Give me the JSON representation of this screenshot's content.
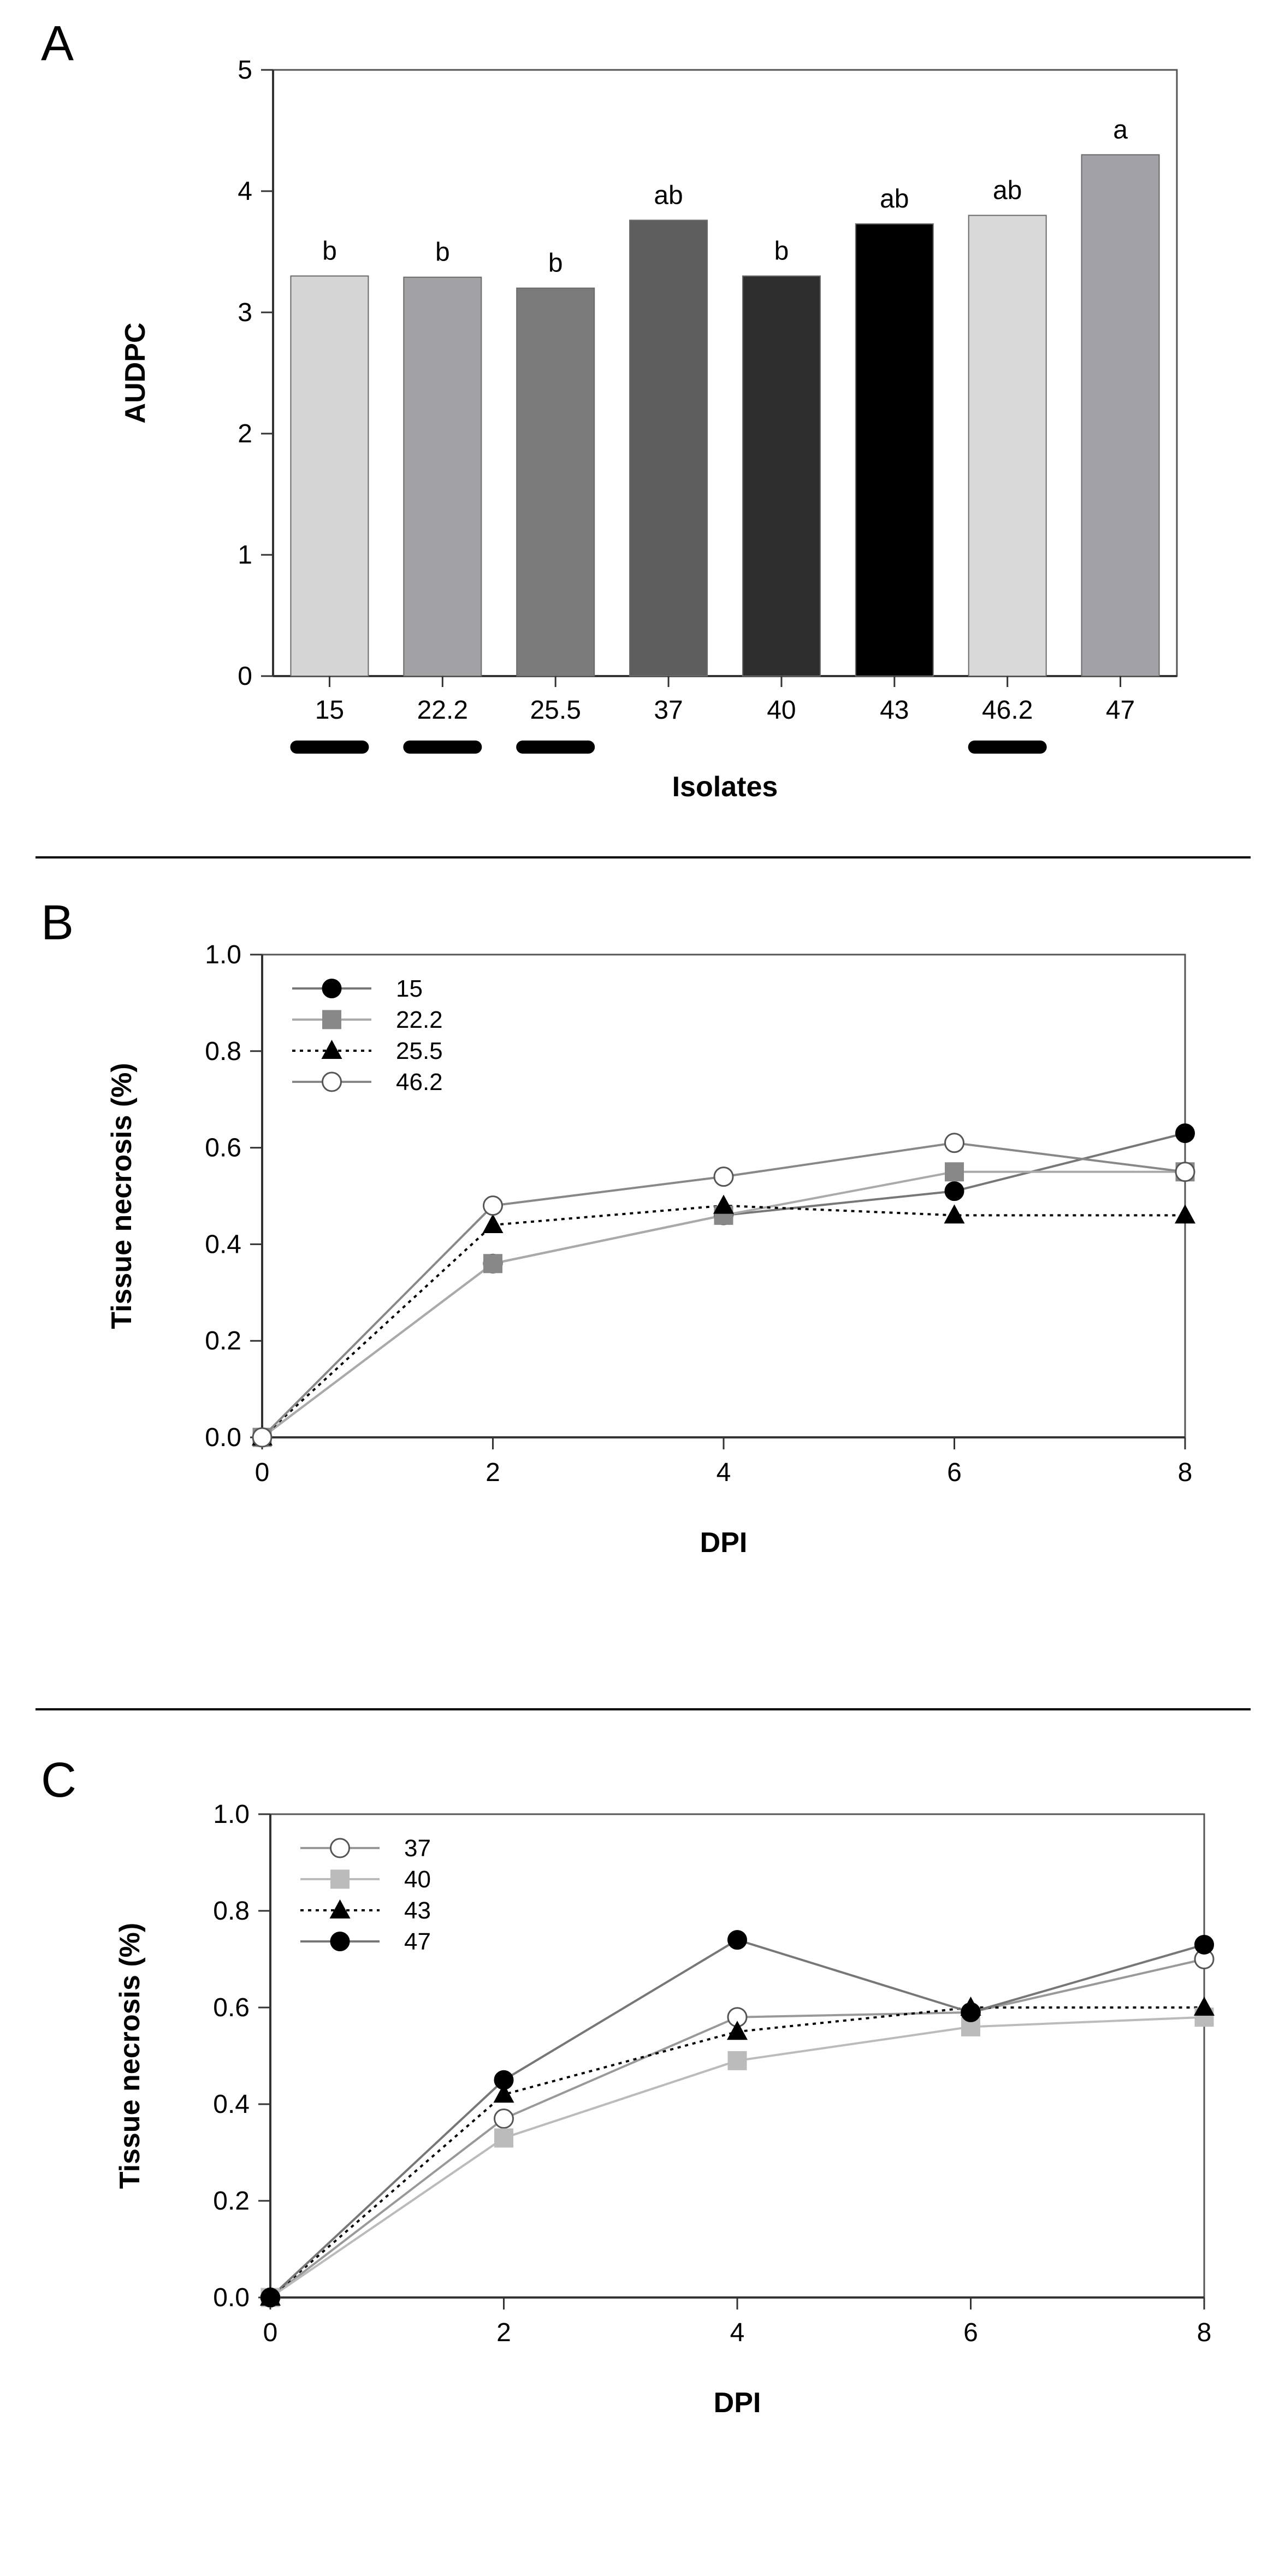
{
  "figure": {
    "panels": [
      "A",
      "B",
      "C"
    ]
  },
  "colors": {
    "bars": [
      "#d6d6d6",
      "#a3a3a6",
      "#7b7b7b",
      "#5e5e5e",
      "#2e2e2e",
      "#000000",
      "#d9d9d9",
      "#a2a2a8"
    ],
    "series_b": [
      "#000000",
      "#888888",
      "#000000",
      "#888888"
    ],
    "series_c": [
      "#888888",
      "#bbbbbb",
      "#000000",
      "#888888"
    ]
  },
  "chart_data": [
    {
      "panel": "A",
      "type": "bar",
      "categories": [
        "15",
        "22.2",
        "25.5",
        "37",
        "40",
        "43",
        "46.2",
        "47"
      ],
      "values": [
        3.3,
        3.29,
        3.2,
        3.76,
        3.3,
        3.73,
        3.8,
        4.3
      ],
      "significance": [
        "b",
        "b",
        "b",
        "ab",
        "b",
        "ab",
        "ab",
        "a"
      ],
      "underlined_categories": [
        "15",
        "22.2",
        "25.5",
        "46.2"
      ],
      "xlabel": "Isolates",
      "ylabel": "AUDPC",
      "ylim": [
        0,
        5
      ],
      "yticks": [
        "0",
        "1",
        "2",
        "3",
        "4",
        "5"
      ]
    },
    {
      "panel": "B",
      "type": "line",
      "x": [
        0,
        2,
        4,
        6,
        8
      ],
      "xticks": [
        "0",
        "2",
        "4",
        "6",
        "8"
      ],
      "yticks": [
        "0.0",
        "0.2",
        "0.4",
        "0.6",
        "0.8",
        "1.0"
      ],
      "xlim": [
        0,
        8
      ],
      "ylim": [
        0,
        1
      ],
      "xlabel": "DPI",
      "ylabel": "Tissue necrosis (%)",
      "legend_position": "top-left",
      "series": [
        {
          "name": "15",
          "marker": "filled-circle",
          "values": [
            0.0,
            0.36,
            0.46,
            0.51,
            0.63
          ]
        },
        {
          "name": "22.2",
          "marker": "filled-square",
          "values": [
            0.0,
            0.36,
            0.46,
            0.55,
            0.55
          ]
        },
        {
          "name": "25.5",
          "marker": "filled-triangle",
          "values": [
            0.0,
            0.44,
            0.48,
            0.46,
            0.46
          ]
        },
        {
          "name": "46.2",
          "marker": "open-circle",
          "values": [
            0.0,
            0.48,
            0.54,
            0.61,
            0.55
          ]
        }
      ]
    },
    {
      "panel": "C",
      "type": "line",
      "x": [
        0,
        2,
        4,
        6,
        8
      ],
      "xticks": [
        "0",
        "2",
        "4",
        "6",
        "8"
      ],
      "yticks": [
        "0.0",
        "0.2",
        "0.4",
        "0.6",
        "0.8",
        "1.0"
      ],
      "xlim": [
        0,
        8
      ],
      "ylim": [
        0,
        1
      ],
      "xlabel": "DPI",
      "ylabel": "Tissue necrosis (%)",
      "legend_position": "top-left",
      "series": [
        {
          "name": "37",
          "marker": "open-circle",
          "values": [
            0.0,
            0.37,
            0.58,
            0.59,
            0.7
          ]
        },
        {
          "name": "40",
          "marker": "filled-square",
          "values": [
            0.0,
            0.33,
            0.49,
            0.56,
            0.58
          ]
        },
        {
          "name": "43",
          "marker": "filled-triangle",
          "values": [
            0.0,
            0.42,
            0.55,
            0.6,
            0.6
          ]
        },
        {
          "name": "47",
          "marker": "filled-circle",
          "values": [
            0.0,
            0.45,
            0.74,
            0.59,
            0.73
          ]
        }
      ]
    }
  ]
}
